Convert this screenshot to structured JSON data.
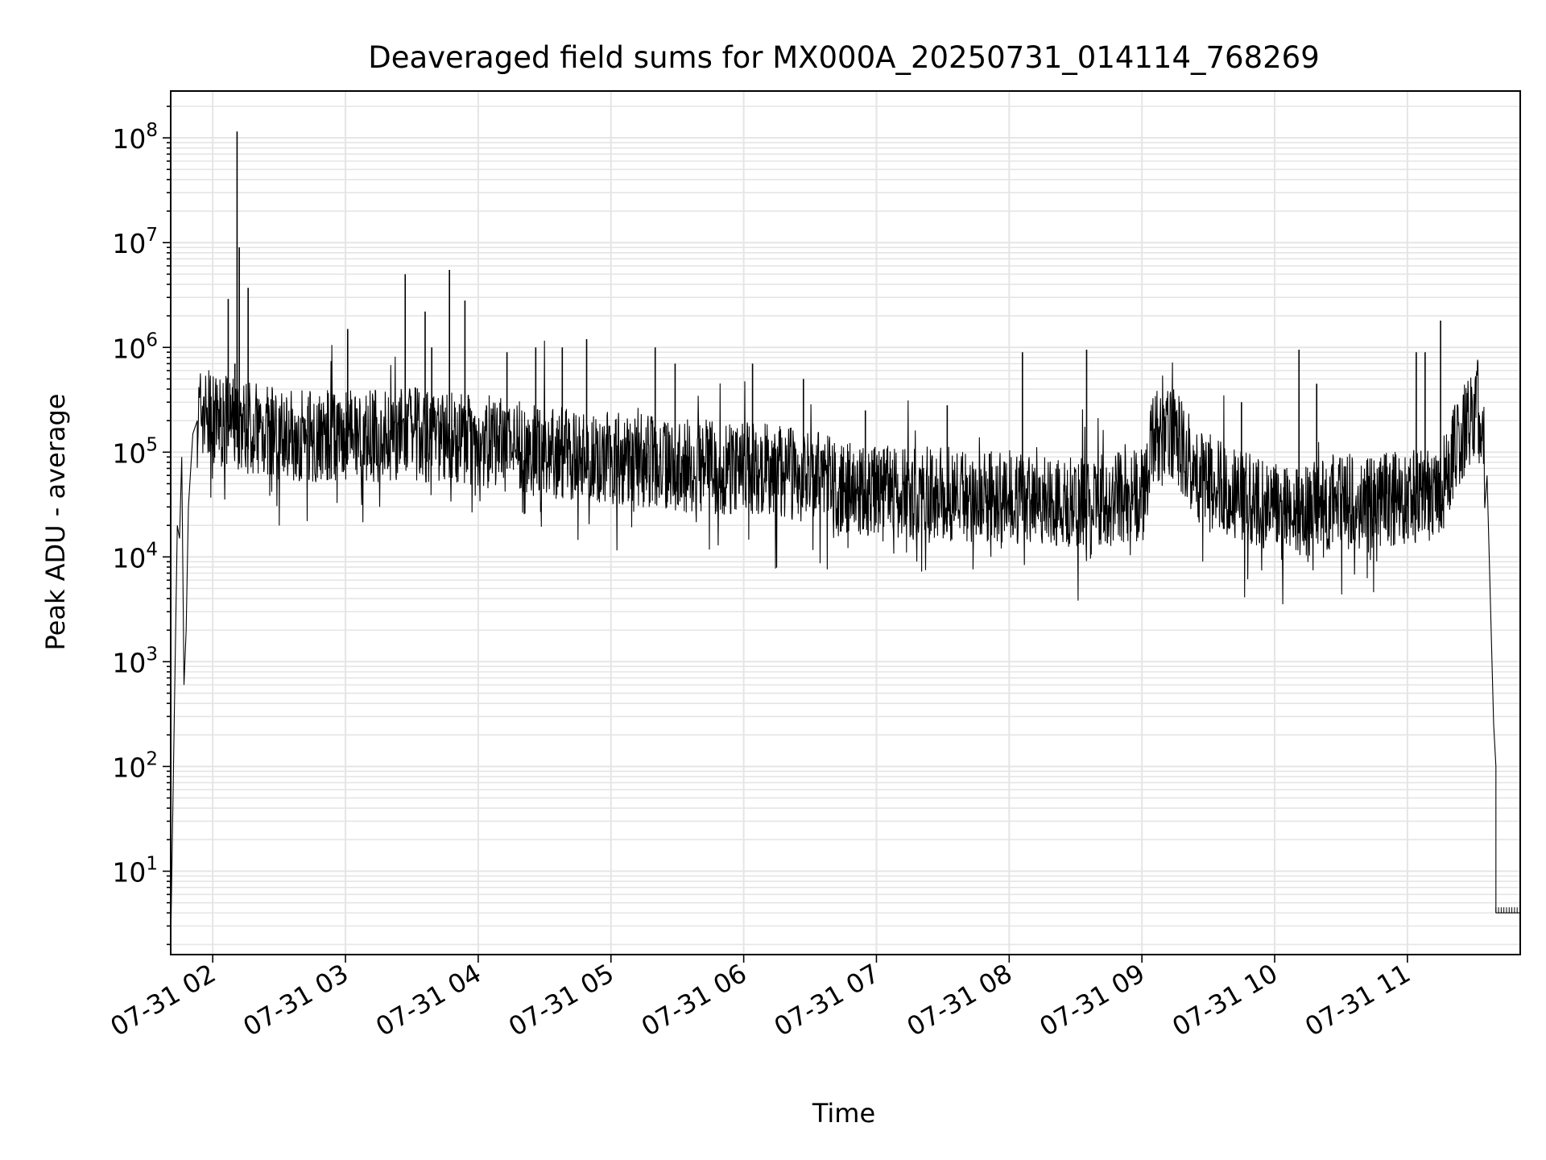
{
  "chart_data": {
    "type": "line",
    "title": "Deaveraged field sums for MX000A_20250731_014114_768269",
    "xlabel": "Time",
    "ylabel": "Peak ADU - average",
    "x_scale": "time",
    "y_scale": "log",
    "xlim": [
      "07-31 01:41",
      "07-31 11:51"
    ],
    "ylim": [
      1.6,
      280000000
    ],
    "x_ticks": [
      "07-31 02",
      "07-31 03",
      "07-31 04",
      "07-31 05",
      "07-31 06",
      "07-31 07",
      "07-31 08",
      "07-31 09",
      "07-31 10",
      "07-31 11"
    ],
    "y_ticks": [
      {
        "value": 10,
        "base": "10",
        "exp": "1"
      },
      {
        "value": 100,
        "base": "10",
        "exp": "2"
      },
      {
        "value": 1000,
        "base": "10",
        "exp": "3"
      },
      {
        "value": 10000,
        "base": "10",
        "exp": "4"
      },
      {
        "value": 100000,
        "base": "10",
        "exp": "5"
      },
      {
        "value": 1000000,
        "base": "10",
        "exp": "6"
      },
      {
        "value": 10000000,
        "base": "10",
        "exp": "7"
      },
      {
        "value": 100000000,
        "base": "10",
        "exp": "8"
      }
    ],
    "grid": "major and minor",
    "line_color": "#000000",
    "grid_color": "#e5e5e5",
    "series": [
      {
        "points": [
          [
            "07-31 01:41",
            2
          ],
          [
            "07-31 01:44",
            20000
          ],
          [
            "07-31 01:45",
            15000
          ],
          [
            "07-31 01:46",
            90000
          ],
          [
            "07-31 01:47",
            600
          ],
          [
            "07-31 01:48",
            2000
          ],
          [
            "07-31 01:49",
            30000
          ],
          [
            "07-31 01:51",
            150000
          ],
          [
            "07-31 01:53",
            200000
          ],
          [
            "07-31 01:55",
            250000
          ],
          [
            "07-31 02:00",
            200000
          ],
          [
            "07-31 02:15",
            180000
          ],
          [
            "07-31 02:30",
            150000
          ],
          [
            "07-31 03:00",
            140000
          ],
          [
            "07-31 03:30",
            150000
          ],
          [
            "07-31 04:00",
            130000
          ],
          [
            "07-31 04:30",
            100000
          ],
          [
            "07-31 05:00",
            90000
          ],
          [
            "07-31 05:30",
            75000
          ],
          [
            "07-31 06:00",
            70000
          ],
          [
            "07-31 06:30",
            60000
          ],
          [
            "07-31 06:45",
            45000
          ],
          [
            "07-31 07:00",
            42000
          ],
          [
            "07-31 07:30",
            40000
          ],
          [
            "07-31 08:00",
            38000
          ],
          [
            "07-31 08:30",
            33000
          ],
          [
            "07-31 09:00",
            38000
          ],
          [
            "07-31 09:05",
            120000
          ],
          [
            "07-31 09:15",
            150000
          ],
          [
            "07-31 09:25",
            60000
          ],
          [
            "07-31 09:45",
            40000
          ],
          [
            "07-31 10:00",
            28000
          ],
          [
            "07-31 10:15",
            28000
          ],
          [
            "07-31 10:30",
            33000
          ],
          [
            "07-31 10:50",
            35000
          ],
          [
            "07-31 11:05",
            38000
          ],
          [
            "07-31 11:15",
            40000
          ],
          [
            "07-31 11:20",
            90000
          ],
          [
            "07-31 11:25",
            150000
          ],
          [
            "07-31 11:30",
            250000
          ],
          [
            "07-31 11:32",
            300000
          ],
          [
            "07-31 11:35",
            150000
          ],
          [
            "07-31 11:36",
            60000
          ],
          [
            "07-31 11:37",
            10000
          ],
          [
            "07-31 11:38",
            1500
          ],
          [
            "07-31 11:39",
            250
          ],
          [
            "07-31 11:40",
            100
          ],
          [
            "07-31 11:40",
            4
          ],
          [
            "07-31 11:51",
            4
          ]
        ],
        "spikes": [
          [
            "07-31 02:11",
            115000000
          ],
          [
            "07-31 02:12",
            9000000
          ],
          [
            "07-31 02:07",
            2900000
          ],
          [
            "07-31 02:16",
            3700000
          ],
          [
            "07-31 02:10",
            700000
          ],
          [
            "07-31 03:01",
            1500000
          ],
          [
            "07-31 03:27",
            5000000
          ],
          [
            "07-31 03:36",
            2200000
          ],
          [
            "07-31 03:39",
            1000000
          ],
          [
            "07-31 03:47",
            5500000
          ],
          [
            "07-31 03:54",
            2800000
          ],
          [
            "07-31 04:13",
            900000
          ],
          [
            "07-31 04:26",
            1000000
          ],
          [
            "07-31 04:38",
            1000000
          ],
          [
            "07-31 04:49",
            1200000
          ],
          [
            "07-31 05:20",
            1000000
          ],
          [
            "07-31 05:29",
            700000
          ],
          [
            "07-31 06:04",
            700000
          ],
          [
            "07-31 06:27",
            500000
          ],
          [
            "07-31 06:55",
            250000
          ],
          [
            "07-31 07:32",
            280000
          ],
          [
            "07-31 08:06",
            900000
          ],
          [
            "07-31 08:35",
            950000
          ],
          [
            "07-31 09:45",
            300000
          ],
          [
            "07-31 10:11",
            950000
          ],
          [
            "07-31 10:19",
            450000
          ],
          [
            "07-31 11:04",
            900000
          ],
          [
            "07-31 11:08",
            900000
          ],
          [
            "07-31 11:15",
            1800000
          ]
        ]
      }
    ]
  }
}
